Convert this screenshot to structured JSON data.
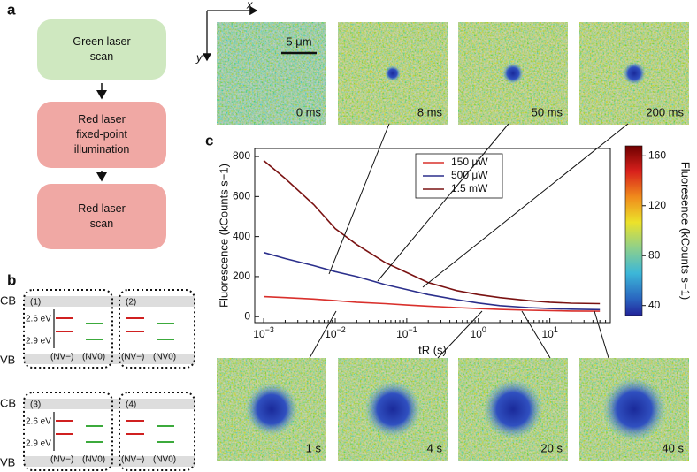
{
  "panel_labels": [
    "a",
    "b",
    "c"
  ],
  "flowchart": {
    "steps": [
      [
        "Green laser",
        "scan"
      ],
      [
        "Red laser",
        "fixed-point",
        "illumination"
      ],
      [
        "Red laser",
        "scan"
      ]
    ]
  },
  "energy_diagrams": {
    "band_labels": {
      "cb": "CB",
      "vb": "VB"
    },
    "levels": [
      "2.6 eV",
      "2.9 eV"
    ],
    "species": [
      "(NV−)",
      "(NV0)"
    ],
    "steps": [
      "(1)",
      "(2)",
      "(3)",
      "(4)"
    ]
  },
  "image_axes": {
    "x": "x",
    "y": "y"
  },
  "scale_bar": "5 μm",
  "images": {
    "top": [
      "0 ms",
      "8 ms",
      "50 ms",
      "200 ms"
    ],
    "bottom": [
      "1 s",
      "4 s",
      "20 s",
      "40 s"
    ]
  },
  "chart_data": {
    "type": "line",
    "x_label": "tR (s)",
    "y_label": "Fluorescence (kCounts s−1)",
    "x": [
      0.001,
      0.002,
      0.005,
      0.01,
      0.02,
      0.05,
      0.1,
      0.2,
      0.5,
      1,
      2,
      5,
      10,
      20,
      50
    ],
    "series": [
      {
        "name": "150 μW",
        "color": "#d9302c",
        "values": [
          100,
          95,
          88,
          80,
          72,
          65,
          58,
          52,
          45,
          40,
          36,
          32,
          30,
          28,
          27
        ]
      },
      {
        "name": "500 μW",
        "color": "#2b2f8c",
        "values": [
          320,
          290,
          255,
          225,
          200,
          160,
          135,
          110,
          85,
          68,
          55,
          45,
          40,
          37,
          35
        ]
      },
      {
        "name": "1.5 mW",
        "color": "#7a1212",
        "values": [
          780,
          690,
          560,
          440,
          360,
          270,
          220,
          170,
          130,
          110,
          95,
          80,
          72,
          67,
          65
        ]
      }
    ],
    "xlog": true,
    "xlim": [
      0.00075,
      70
    ],
    "xticks": [
      {
        "value": 0.001,
        "label": "10−3"
      },
      {
        "value": 0.01,
        "label": "10−2"
      },
      {
        "value": 0.1,
        "label": "10−1"
      },
      {
        "value": 1,
        "label": "100"
      },
      {
        "value": 10,
        "label": "101"
      }
    ],
    "ylim": [
      -30,
      840
    ],
    "yticks": [
      0,
      200,
      400,
      600,
      800
    ],
    "legend": "top"
  },
  "colorbar": {
    "label": "Fluoresence (kCounts s−1)",
    "clim": [
      32,
      168
    ],
    "ticks": [
      40,
      80,
      120,
      160
    ]
  }
}
